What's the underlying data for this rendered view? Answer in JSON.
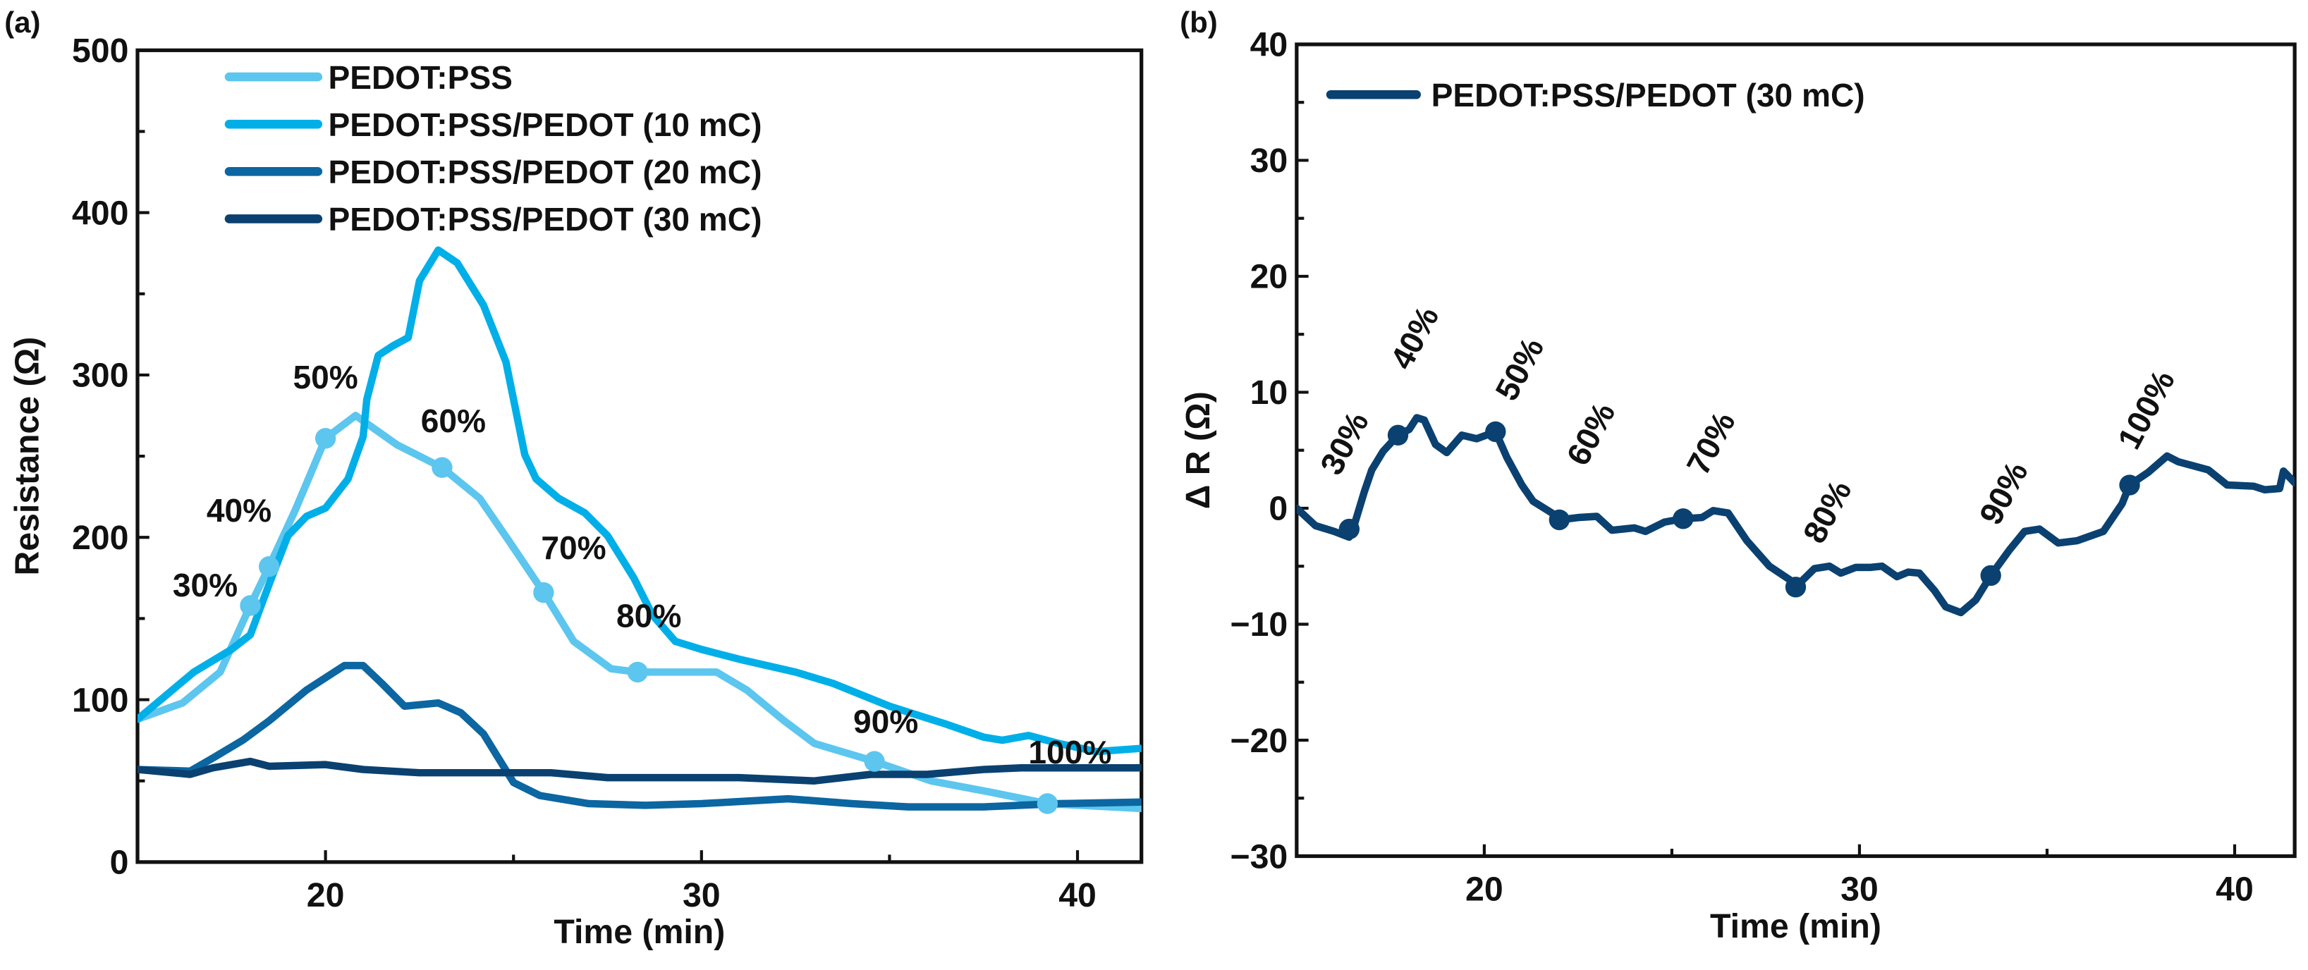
{
  "chart_data": [
    {
      "panel_label": "(a)",
      "type": "line",
      "xlabel": "Time (min)",
      "ylabel": "Resistance (Ω)",
      "xlim": [
        15,
        41.7
      ],
      "ylim": [
        0,
        500
      ],
      "xticks": [
        20,
        30,
        40
      ],
      "yticks": [
        0,
        100,
        200,
        300,
        400,
        500
      ],
      "grid": false,
      "legend_position": "top-left",
      "series": [
        {
          "name": "PEDOT:PSS",
          "color": "#5cc6ef",
          "x": [
            15,
            16.2,
            17.2,
            18.0,
            18.5,
            19.2,
            20.0,
            20.8,
            21.9,
            23.1,
            24.1,
            24.9,
            25.8,
            26.6,
            27.6,
            28.3,
            30.4,
            31.2,
            32.2,
            33.0,
            34.6,
            36.1,
            37.7,
            39.2,
            41.7
          ],
          "y": [
            88,
            98,
            117,
            158,
            182,
            217,
            261,
            275,
            257,
            243,
            224,
            197,
            166,
            136,
            119,
            117,
            117,
            106,
            87,
            73,
            62,
            50,
            43,
            36,
            33
          ]
        },
        {
          "name": "PEDOT:PSS/PEDOT (10 mC)",
          "color": "#00afe8",
          "x": [
            15,
            16.5,
            17.5,
            18.0,
            18.5,
            19.0,
            19.5,
            20.0,
            20.6,
            21.0,
            21.1,
            21.4,
            21.8,
            22.2,
            22.5,
            23.0,
            23.5,
            24.2,
            24.8,
            25.3,
            25.6,
            26.2,
            26.9,
            27.5,
            28.2,
            28.7,
            29.3,
            30.0,
            31.0,
            32.5,
            33.5,
            35.0,
            36.5,
            37.5,
            38.0,
            38.7,
            39.5,
            40.5,
            41.7
          ],
          "y": [
            88,
            117,
            131,
            140,
            171,
            201,
            213,
            218,
            236,
            262,
            285,
            312,
            318,
            323,
            358,
            377,
            369,
            343,
            308,
            251,
            236,
            224,
            215,
            201,
            175,
            152,
            136,
            131,
            125,
            117,
            110,
            96,
            85,
            77,
            75,
            78,
            73,
            68,
            70
          ]
        },
        {
          "name": "PEDOT:PSS/PEDOT (20 mC)",
          "color": "#0b66a1",
          "x": [
            15,
            16.4,
            17.0,
            17.8,
            18.5,
            19.5,
            20.5,
            21.0,
            21.5,
            22.1,
            23.0,
            23.6,
            24.2,
            24.6,
            25.0,
            25.7,
            27.0,
            28.5,
            30.0,
            32.3,
            34.0,
            35.5,
            37.5,
            39.5,
            41.7
          ],
          "y": [
            57,
            56,
            64,
            75,
            87,
            106,
            121,
            121,
            110,
            96,
            98,
            92,
            79,
            64,
            49,
            41,
            36,
            35,
            36,
            39,
            36,
            34,
            34,
            36,
            37
          ]
        },
        {
          "name": "PEDOT:PSS/PEDOT (30 mC)",
          "color": "#0a4170",
          "x": [
            15,
            16.4,
            17.0,
            18.0,
            18.5,
            20.0,
            21.0,
            22.5,
            25.0,
            26.0,
            27.5,
            29.5,
            31.0,
            33.0,
            34.5,
            36.0,
            37.5,
            38.5,
            41.7
          ],
          "y": [
            57,
            54,
            58,
            62,
            59,
            60,
            57,
            55,
            55,
            55,
            52,
            52,
            52,
            50,
            54,
            54,
            57,
            58,
            58
          ]
        }
      ],
      "markers": {
        "series": "PEDOT:PSS",
        "x": [
          18.0,
          18.5,
          20.0,
          23.1,
          25.8,
          28.3,
          34.6,
          39.2
        ],
        "y": [
          158,
          182,
          261,
          243,
          166,
          117,
          62,
          36
        ]
      },
      "annotations": [
        "30%",
        "40%",
        "50%",
        "60%",
        "70%",
        "80%",
        "90%",
        "100%"
      ]
    },
    {
      "panel_label": "(b)",
      "type": "line",
      "xlabel": "Time (min)",
      "ylabel": "Δ R (Ω)",
      "xlim": [
        15,
        41.6
      ],
      "ylim": [
        -30,
        40
      ],
      "xticks": [
        20,
        30,
        40
      ],
      "yticks": [
        -30,
        -20,
        -10,
        0,
        10,
        20,
        30,
        40
      ],
      "ytick_labels": [
        "−30",
        "−20",
        "−10",
        "0",
        "10",
        "20",
        "30",
        "40"
      ],
      "grid": false,
      "legend_position": "top-left",
      "series": [
        {
          "name": "PEDOT:PSS/PEDOT (30 mC)",
          "color": "#0a4170",
          "x": [
            15.0,
            15.5,
            16.0,
            16.4,
            16.5,
            16.8,
            17.0,
            17.3,
            17.7,
            18.0,
            18.2,
            18.4,
            18.7,
            19.0,
            19.4,
            19.8,
            20.3,
            20.6,
            21.0,
            21.3,
            21.8,
            22.0,
            22.5,
            23.0,
            23.4,
            24.0,
            24.3,
            24.8,
            25.3,
            25.8,
            26.1,
            26.5,
            27.0,
            27.6,
            28.2,
            28.3,
            28.8,
            29.2,
            29.5,
            29.9,
            30.3,
            30.6,
            31.0,
            31.3,
            31.6,
            32.0,
            32.3,
            32.7,
            33.1,
            33.5,
            34.0,
            34.4,
            34.8,
            35.3,
            35.8,
            36.5,
            37.0,
            37.2,
            37.7,
            38.2,
            38.5,
            39.3,
            39.8,
            40.5,
            40.8,
            41.2,
            41.3,
            41.6
          ],
          "y": [
            0,
            -1.5,
            -2.0,
            -2.5,
            -1.8,
            1.4,
            3.3,
            4.9,
            6.3,
            6.8,
            7.8,
            7.6,
            5.5,
            4.8,
            6.3,
            6.0,
            6.6,
            4.4,
            2.0,
            0.6,
            -0.4,
            -1.0,
            -0.8,
            -0.7,
            -1.9,
            -1.7,
            -2.0,
            -1.2,
            -0.9,
            -0.8,
            -0.2,
            -0.4,
            -2.8,
            -5.0,
            -6.3,
            -6.8,
            -5.2,
            -5.0,
            -5.6,
            -5.1,
            -5.1,
            -5.0,
            -5.9,
            -5.5,
            -5.6,
            -7.1,
            -8.5,
            -9.0,
            -7.9,
            -5.8,
            -3.6,
            -2.0,
            -1.8,
            -3.0,
            -2.8,
            -2.0,
            0.4,
            2.0,
            3.1,
            4.5,
            4.0,
            3.3,
            2.0,
            1.9,
            1.6,
            1.7,
            3.2,
            2.2
          ]
        }
      ],
      "markers": {
        "series": "PEDOT:PSS/PEDOT (30 mC)",
        "x": [
          16.4,
          17.7,
          20.3,
          22.0,
          25.3,
          28.3,
          33.5,
          37.2
        ],
        "y": [
          -1.8,
          6.3,
          6.6,
          -1.0,
          -0.9,
          -6.8,
          -5.8,
          2.0
        ]
      },
      "annotations": [
        "30%",
        "40%",
        "50%",
        "60%",
        "70%",
        "80%",
        "90%",
        "100%"
      ]
    }
  ]
}
